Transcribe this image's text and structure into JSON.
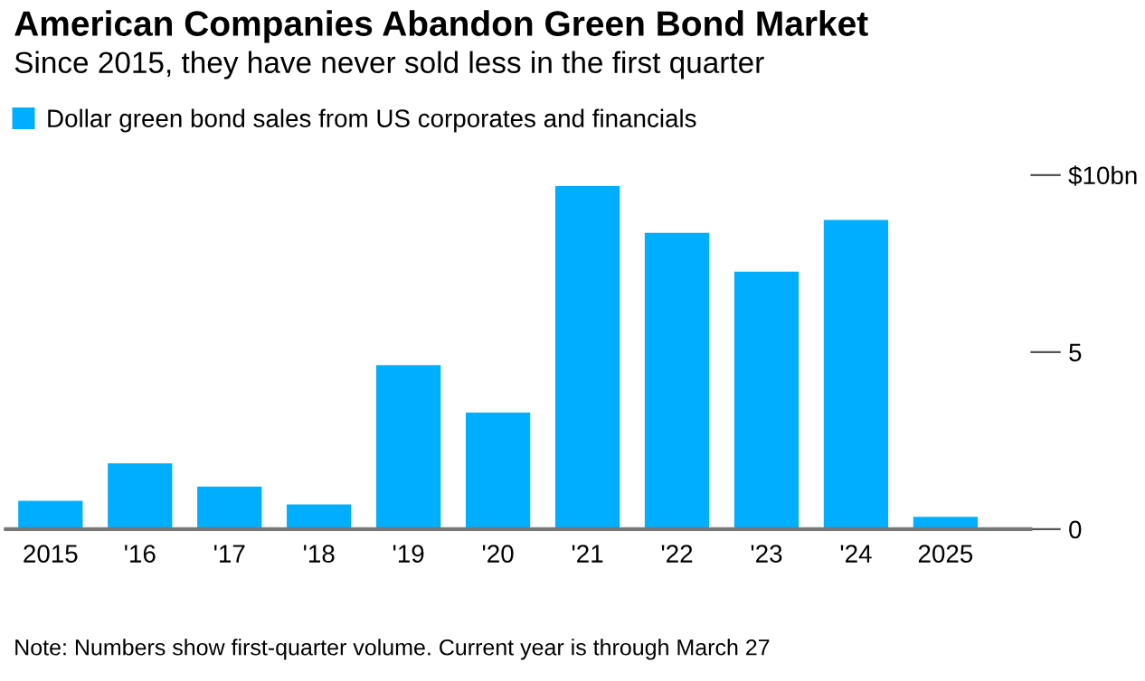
{
  "chart_data": {
    "type": "bar",
    "title": "American Companies Abandon Green Bond Market",
    "subtitle": "Since 2015, they have never sold less in the first quarter",
    "categories": [
      "2015",
      "'16",
      "'17",
      "'18",
      "'19",
      "'20",
      "'21",
      "'22",
      "'23",
      "'24",
      "2025"
    ],
    "series": [
      {
        "name": "Dollar green bond sales from US corporates and financials",
        "color": "#00aeff",
        "values": [
          0.8,
          1.86,
          1.2,
          0.7,
          4.63,
          3.29,
          9.69,
          8.37,
          7.27,
          8.73,
          0.35
        ]
      }
    ],
    "ylim": [
      0,
      10
    ],
    "yticks": [
      0,
      5,
      {
        "value": 10,
        "label": "$10bn"
      }
    ],
    "grid": false,
    "legend": "top left",
    "annotations": [
      "Note: Numbers show first-quarter volume. Current year is through March 27"
    ]
  }
}
